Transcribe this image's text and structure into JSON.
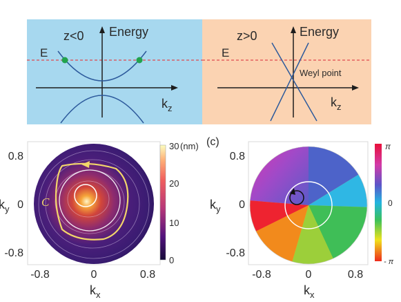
{
  "panel_top_left": {
    "condition_label": "z<0",
    "y_axis_label": "Energy",
    "x_axis_label": "k",
    "x_axis_subscript": "z",
    "energy_level_label": "E",
    "background_color": "#a7d8ef",
    "curve_color": "#2d5a9c",
    "fermi_line_color": "#e0484e",
    "crossing_dot_color": "#21a34d"
  },
  "panel_top_right": {
    "condition_label": "z>0",
    "y_axis_label": "Energy",
    "x_axis_label": "k",
    "x_axis_subscript": "z",
    "energy_level_label": "E",
    "crossing_label": "Weyl point",
    "background_color": "#fbd3b2"
  },
  "panel_b": {
    "y_ticks": [
      "0.8",
      "0",
      "-0.8"
    ],
    "x_ticks": [
      "-0.8",
      "0",
      "0.8"
    ],
    "x_label": "k",
    "x_subscript": "x",
    "y_label": "k",
    "y_subscript": "y",
    "loop_label": "C",
    "colorbar_ticks": [
      "30",
      "20",
      "10",
      "0"
    ],
    "colorbar_unit": "(nm)",
    "loop_color": "#f3d66a"
  },
  "panel_c": {
    "panel_label": "(c)",
    "y_ticks": [
      "0.8",
      "0",
      "-0.8"
    ],
    "x_ticks": [
      "-0.8",
      "0",
      "0.8"
    ],
    "x_label": "k",
    "x_subscript": "x",
    "y_label": "k",
    "y_subscript": "y",
    "colorbar_ticks": [
      "π",
      "0",
      "- π"
    ]
  }
}
